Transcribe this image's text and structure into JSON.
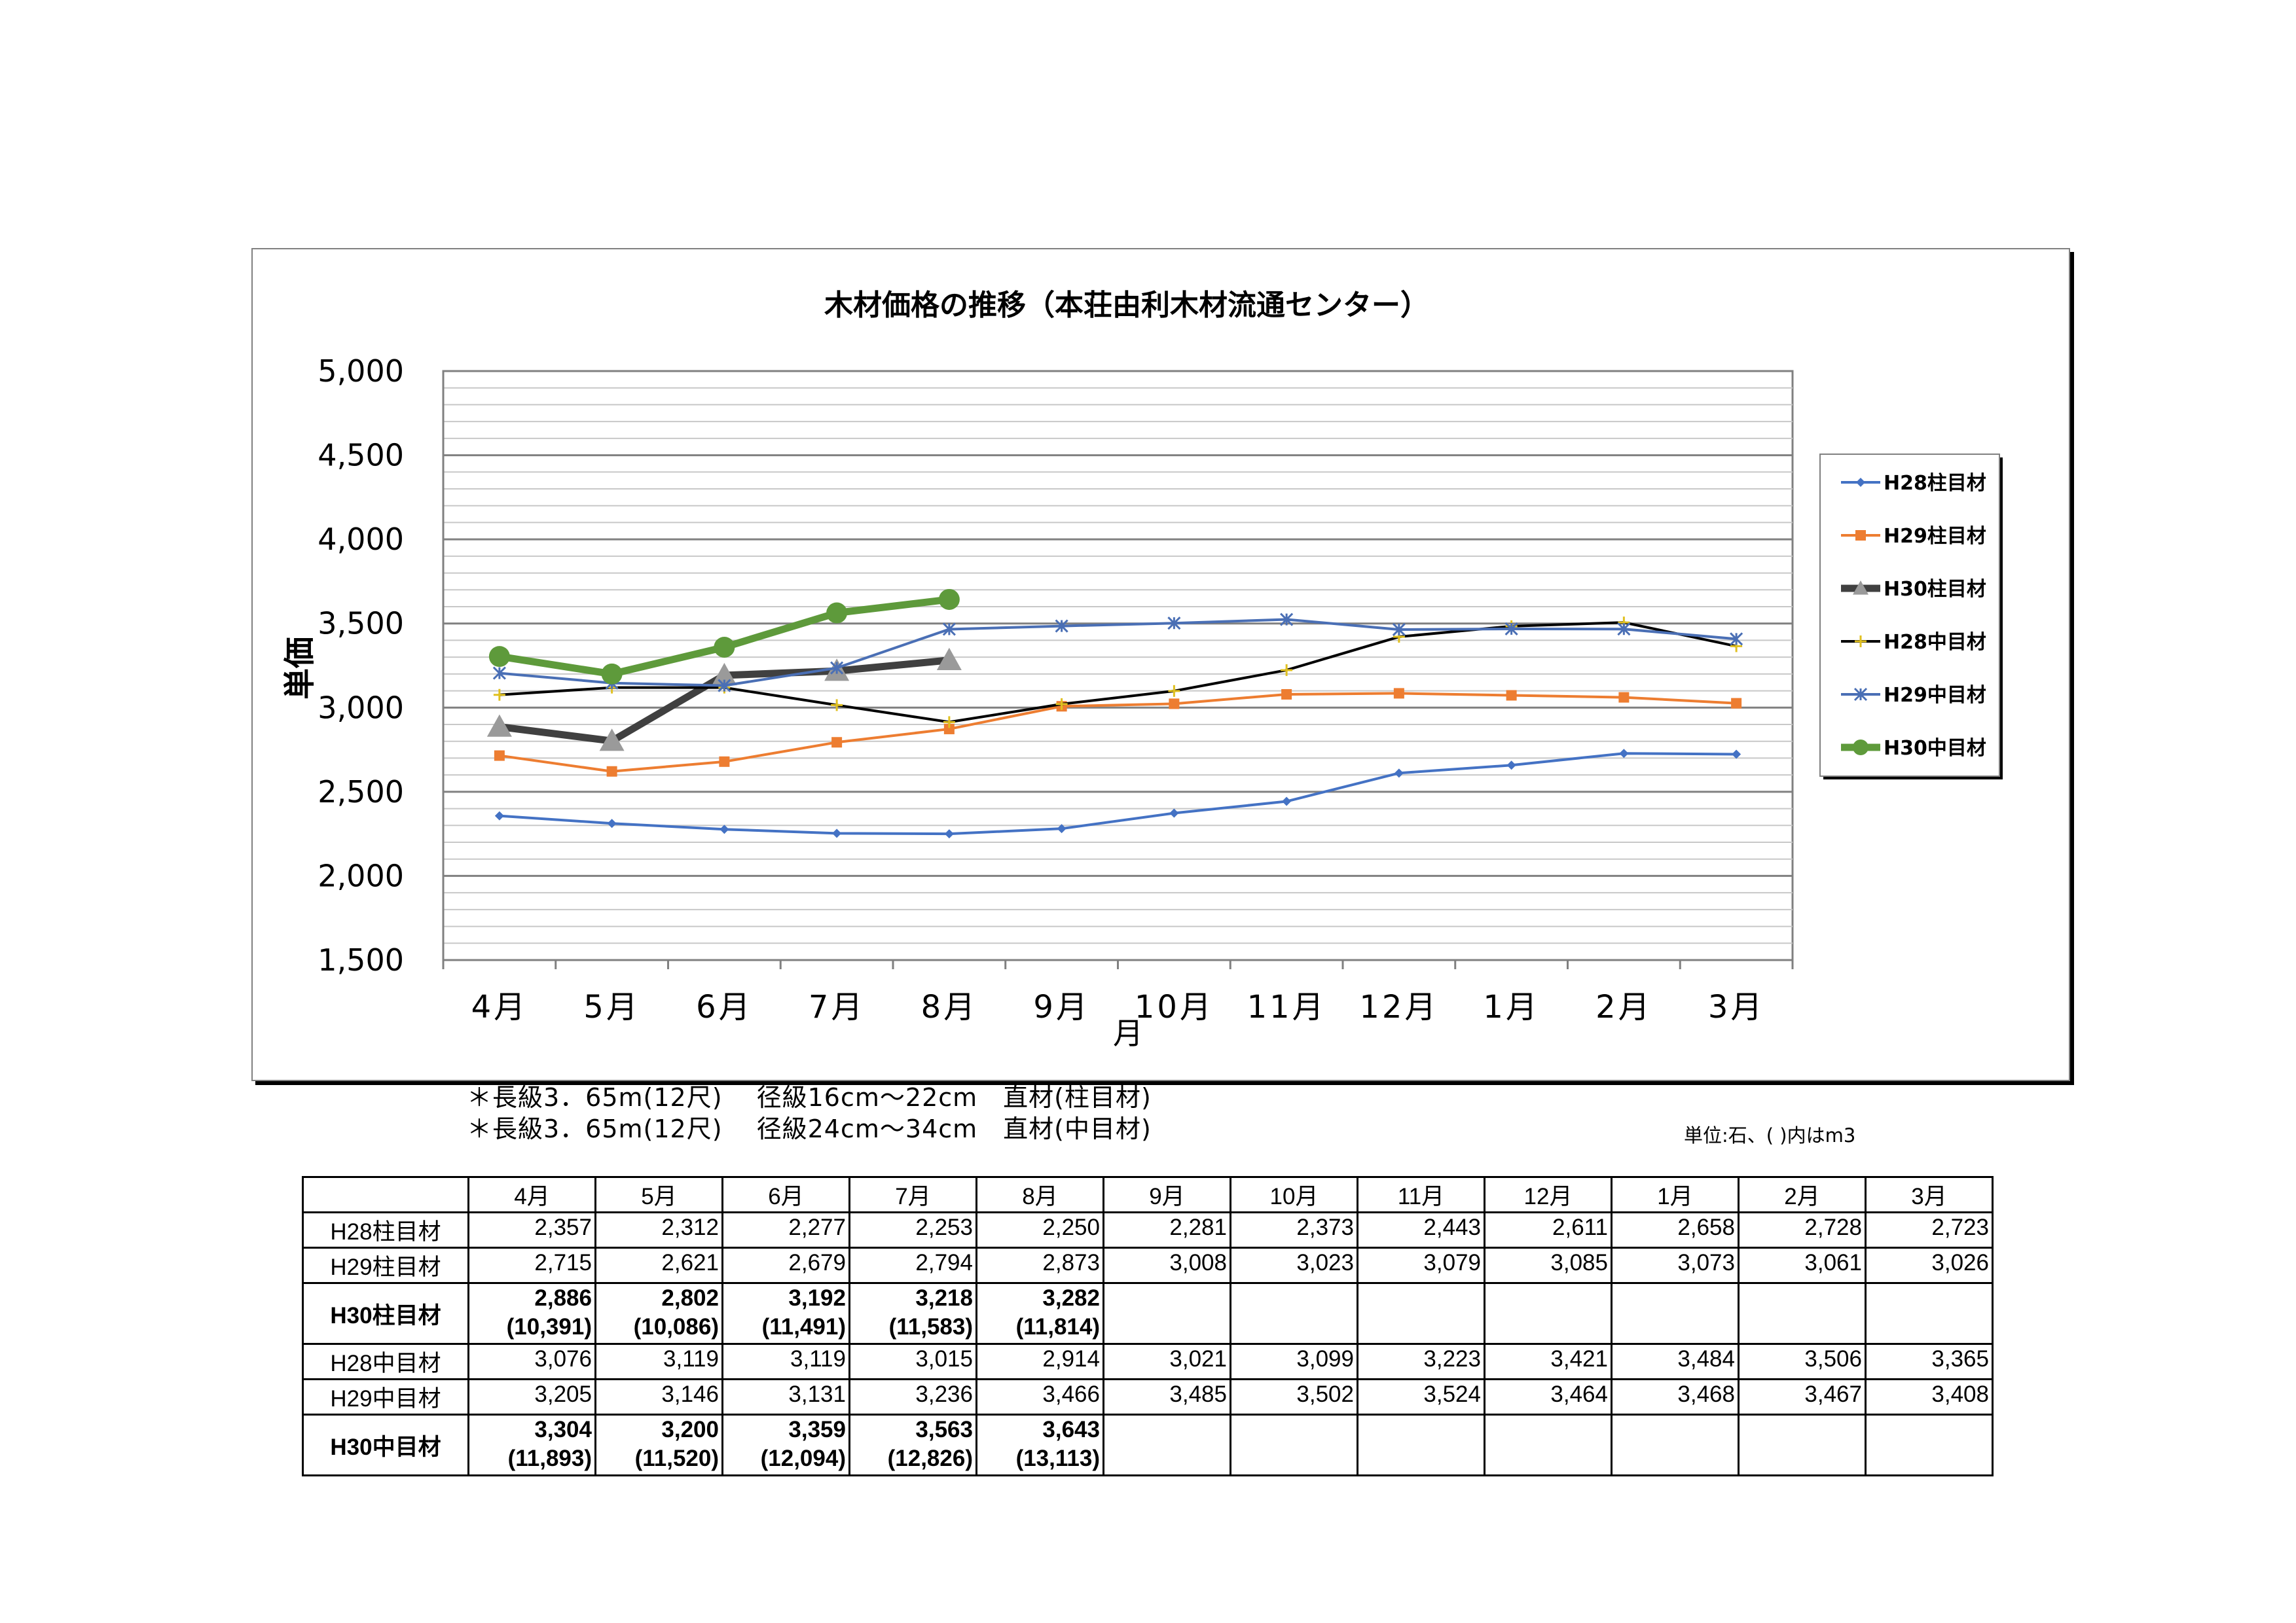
{
  "chart_data": {
    "type": "line",
    "title": "木材価格の推移（本荘由利木材流通センター）",
    "xlabel": "月",
    "ylabel": "単価",
    "categories": [
      "4月",
      "5月",
      "6月",
      "7月",
      "8月",
      "9月",
      "10月",
      "11月",
      "12月",
      "1月",
      "2月",
      "3月"
    ],
    "ylim": [
      1500,
      5000
    ],
    "yticks": [
      "1,500",
      "2,000",
      "2,500",
      "3,000",
      "3,500",
      "4,000",
      "4,500",
      "5,000"
    ],
    "ytick_values": [
      1500,
      2000,
      2500,
      3000,
      3500,
      4000,
      4500,
      5000
    ],
    "grid": true,
    "legend_position": "right",
    "series": [
      {
        "name": "H28柱目材",
        "color": "#4472C4",
        "marker": "diamond",
        "values": [
          2357,
          2312,
          2277,
          2253,
          2250,
          2281,
          2373,
          2443,
          2611,
          2658,
          2728,
          2723
        ]
      },
      {
        "name": "H29柱目材",
        "color": "#ED7D31",
        "marker": "square",
        "values": [
          2715,
          2621,
          2679,
          2794,
          2873,
          3008,
          3023,
          3079,
          3085,
          3073,
          3061,
          3026
        ]
      },
      {
        "name": "H30柱目材",
        "color": "#404040",
        "marker": "triangle",
        "values": [
          2886,
          2802,
          3192,
          3218,
          3282,
          null,
          null,
          null,
          null,
          null,
          null,
          null
        ]
      },
      {
        "name": "H28中目材",
        "color": "#000000",
        "marker": "plus",
        "values": [
          3076,
          3119,
          3119,
          3015,
          2914,
          3021,
          3099,
          3223,
          3421,
          3484,
          3506,
          3365
        ]
      },
      {
        "name": "H29中目材",
        "color": "#4A6FB5",
        "marker": "star",
        "values": [
          3205,
          3146,
          3131,
          3236,
          3466,
          3485,
          3502,
          3524,
          3464,
          3468,
          3467,
          3408
        ]
      },
      {
        "name": "H30中目材",
        "color": "#5E9A3B",
        "marker": "circle",
        "values": [
          3304,
          3200,
          3359,
          3563,
          3643,
          null,
          null,
          null,
          null,
          null,
          null,
          null
        ]
      }
    ]
  },
  "notes": {
    "line1": "＊長級3．65m(12尺)　 径級16cm～22cm　直材(柱目材)",
    "line2": "＊長級3．65m(12尺)　 径級24cm～34cm　直材(中目材)",
    "unit": "単位:石、( )内はm3"
  },
  "table": {
    "headers": [
      "",
      "4月",
      "5月",
      "6月",
      "7月",
      "8月",
      "9月",
      "10月",
      "11月",
      "12月",
      "1月",
      "2月",
      "3月"
    ],
    "rows": [
      {
        "label": "H28柱目材",
        "bold": false,
        "values": [
          "2,357",
          "2,312",
          "2,277",
          "2,253",
          "2,250",
          "2,281",
          "2,373",
          "2,443",
          "2,611",
          "2,658",
          "2,728",
          "2,723"
        ]
      },
      {
        "label": "H29柱目材",
        "bold": false,
        "values": [
          "2,715",
          "2,621",
          "2,679",
          "2,794",
          "2,873",
          "3,008",
          "3,023",
          "3,079",
          "3,085",
          "3,073",
          "3,061",
          "3,026"
        ]
      },
      {
        "label": "H30柱目材",
        "bold": true,
        "values": [
          "2,886",
          "2,802",
          "3,192",
          "3,218",
          "3,282",
          "",
          "",
          "",
          "",
          "",
          "",
          ""
        ],
        "sub": [
          "(10,391)",
          "(10,086)",
          "(11,491)",
          "(11,583)",
          "(11,814)",
          "",
          "",
          "",
          "",
          "",
          "",
          ""
        ]
      },
      {
        "label": "H28中目材",
        "bold": false,
        "values": [
          "3,076",
          "3,119",
          "3,119",
          "3,015",
          "2,914",
          "3,021",
          "3,099",
          "3,223",
          "3,421",
          "3,484",
          "3,506",
          "3,365"
        ]
      },
      {
        "label": "H29中目材",
        "bold": false,
        "values": [
          "3,205",
          "3,146",
          "3,131",
          "3,236",
          "3,466",
          "3,485",
          "3,502",
          "3,524",
          "3,464",
          "3,468",
          "3,467",
          "3,408"
        ]
      },
      {
        "label": "H30中目材",
        "bold": true,
        "values": [
          "3,304",
          "3,200",
          "3,359",
          "3,563",
          "3,643",
          "",
          "",
          "",
          "",
          "",
          "",
          ""
        ],
        "sub": [
          "(11,893)",
          "(11,520)",
          "(12,094)",
          "(12,826)",
          "(13,113)",
          "",
          "",
          "",
          "",
          "",
          "",
          ""
        ]
      }
    ]
  }
}
